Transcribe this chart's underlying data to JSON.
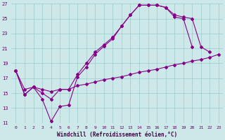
{
  "xlabel": "Windchill (Refroidissement éolien,°C)",
  "bg_color": "#cce8e8",
  "grid_color": "#99cccc",
  "line_color": "#880088",
  "xlim": [
    -0.5,
    23.5
  ],
  "ylim": [
    11,
    27
  ],
  "xticks": [
    0,
    1,
    2,
    3,
    4,
    5,
    6,
    7,
    8,
    9,
    10,
    11,
    12,
    13,
    14,
    15,
    16,
    17,
    18,
    19,
    20,
    21,
    22,
    23
  ],
  "yticks": [
    11,
    13,
    15,
    17,
    19,
    21,
    23,
    25,
    27
  ],
  "line1_x": [
    0,
    1,
    2,
    3,
    4,
    5,
    6,
    7,
    8,
    9,
    10,
    11,
    12,
    13,
    14,
    15,
    16,
    17,
    18,
    19,
    20
  ],
  "line1_y": [
    18.0,
    14.8,
    15.8,
    14.2,
    11.2,
    13.2,
    13.4,
    17.2,
    18.5,
    20.2,
    21.3,
    22.3,
    24.0,
    25.5,
    26.8,
    26.8,
    26.8,
    26.5,
    25.2,
    25.0,
    21.2
  ],
  "line2_x": [
    0,
    1,
    2,
    3,
    4,
    5,
    6,
    7,
    8,
    9,
    10,
    11,
    12,
    13,
    14,
    15,
    16,
    17,
    18,
    19,
    20,
    21,
    22
  ],
  "line2_y": [
    18.0,
    14.8,
    15.8,
    15.0,
    14.2,
    15.5,
    15.5,
    17.5,
    19.0,
    20.5,
    21.5,
    22.5,
    24.0,
    25.5,
    26.8,
    26.8,
    26.8,
    26.5,
    25.5,
    25.2,
    25.0,
    21.2,
    20.5
  ],
  "line3_x": [
    0,
    1,
    2,
    3,
    4,
    5,
    6,
    7,
    8,
    9,
    10,
    11,
    12,
    13,
    14,
    15,
    16,
    17,
    18,
    19,
    20,
    21,
    22,
    23
  ],
  "line3_y": [
    18.0,
    15.5,
    15.8,
    15.5,
    15.2,
    15.5,
    15.5,
    16.0,
    16.2,
    16.5,
    16.8,
    17.0,
    17.2,
    17.5,
    17.8,
    18.0,
    18.2,
    18.5,
    18.8,
    19.0,
    19.3,
    19.5,
    19.8,
    20.2
  ]
}
